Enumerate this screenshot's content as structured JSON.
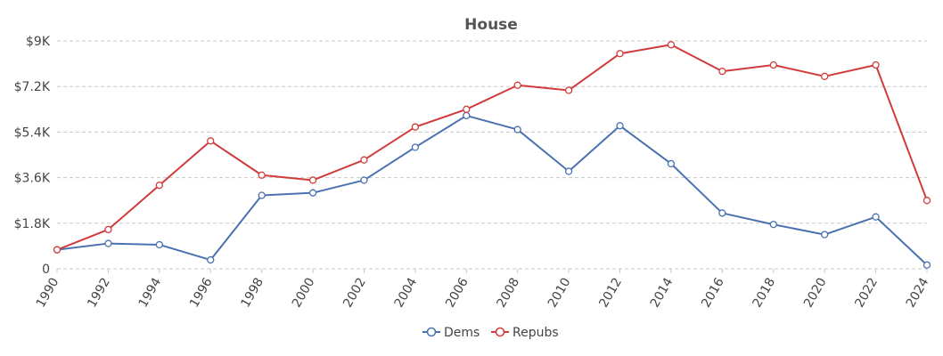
{
  "chart_data": {
    "type": "line",
    "title": "House",
    "xlabel": "",
    "ylabel": "",
    "x": [
      "1990",
      "1992",
      "1994",
      "1996",
      "1998",
      "2000",
      "2002",
      "2004",
      "2006",
      "2008",
      "2010",
      "2012",
      "2014",
      "2016",
      "2018",
      "2020",
      "2022",
      "2024"
    ],
    "y_ticks": [
      "0",
      "$1.8K",
      "$3.6K",
      "$5.4K",
      "$7.2K",
      "$9K"
    ],
    "ylim": [
      0,
      9000
    ],
    "grid": true,
    "legend_position": "bottom",
    "series": [
      {
        "name": "Dems",
        "color": "#4a72b0",
        "values": [
          750,
          1000,
          950,
          350,
          2900,
          3000,
          3500,
          4800,
          6050,
          5500,
          3850,
          5650,
          4150,
          2200,
          1750,
          1350,
          2050,
          150
        ]
      },
      {
        "name": "Repubs",
        "color": "#d13b3b",
        "values": [
          750,
          1550,
          3300,
          5050,
          3700,
          3500,
          4300,
          5600,
          6300,
          7250,
          7050,
          8500,
          8850,
          7800,
          8050,
          7600,
          8050,
          2700
        ]
      }
    ]
  }
}
